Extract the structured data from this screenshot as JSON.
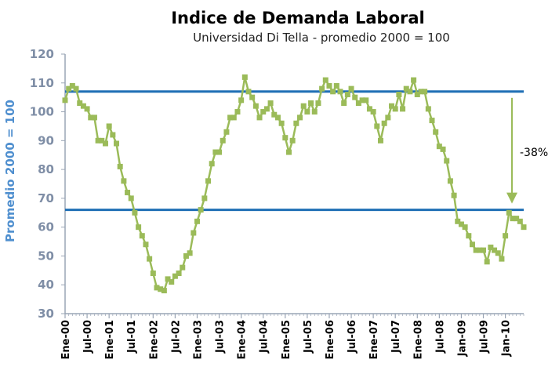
{
  "chart_data": {
    "type": "line",
    "title": "Indice de Demanda Laboral",
    "subtitle": "Universidad Di Tella - promedio 2000 = 100",
    "ylabel": "Promedio 2000 = 100",
    "xlabel": "",
    "ylim": [
      30,
      120
    ],
    "yticks": [
      30,
      40,
      50,
      60,
      70,
      80,
      90,
      100,
      110,
      120
    ],
    "grid": false,
    "legend": "none",
    "x_tick_labels": [
      "Ene-00",
      "Jul-00",
      "Ene-01",
      "Jul-01",
      "Ene-02",
      "Jul-02",
      "Ene-03",
      "Jul-03",
      "Ene-04",
      "Jul-04",
      "Ene-05",
      "Jul-05",
      "Ene-06",
      "Jul-06",
      "Ene-07",
      "Jul-07",
      "Ene-08",
      "Jul-08",
      "Jan-09",
      "Jul-09",
      "Jan-10"
    ],
    "x_start": "2000-01",
    "x_end": "2010-07",
    "series": [
      {
        "color": "#9bbb59",
        "marker": "square",
        "values": [
          104,
          108,
          109,
          108,
          103,
          102,
          101,
          98,
          98,
          90,
          90,
          89,
          95,
          92,
          89,
          81,
          76,
          72,
          70,
          65,
          60,
          57,
          54,
          49,
          44,
          39,
          38.5,
          38,
          42,
          41,
          43,
          44,
          46,
          50,
          51,
          58,
          62,
          66,
          70,
          76,
          82,
          86,
          86,
          90,
          93,
          98,
          98,
          100,
          104,
          112,
          107,
          105,
          102,
          98,
          100,
          101,
          103,
          99,
          98,
          96,
          91,
          86,
          90,
          96,
          98,
          102,
          100,
          103,
          100,
          103,
          108,
          111,
          109,
          107,
          109,
          107,
          103,
          106,
          108,
          105,
          103,
          104,
          104,
          101,
          100,
          95,
          90,
          96,
          98,
          102,
          101,
          106,
          101,
          108,
          107,
          111,
          106,
          107,
          107,
          101,
          97,
          93,
          88,
          87,
          83,
          76,
          71,
          62,
          61,
          60,
          57,
          54,
          52,
          52,
          52,
          48,
          53,
          52,
          51,
          49,
          57,
          65,
          63,
          63,
          62,
          60
        ]
      }
    ],
    "reference_lines": [
      107,
      66
    ],
    "reference_line_color": "#1f6fb5",
    "annotation": {
      "text": "-38%",
      "color": "#9bbb59"
    }
  }
}
